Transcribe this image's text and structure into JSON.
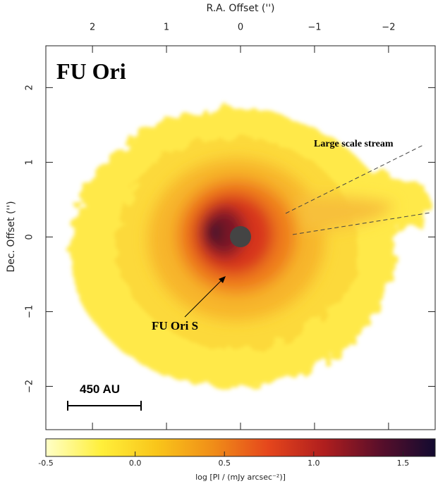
{
  "chart_data": {
    "type": "image",
    "title": "FU Ori",
    "xlabel": "R.A. Offset ('')",
    "ylabel": "Dec. Offset ('')",
    "xlim": [
      2.63,
      -2.63
    ],
    "ylim": [
      -2.58,
      2.56
    ],
    "xticks": [
      2,
      1,
      0,
      {
        "value": -1,
        "label": "−1"
      },
      {
        "value": -2,
        "label": "−2"
      }
    ],
    "yticks": [
      {
        "value": -2,
        "label": "−2"
      },
      {
        "value": -1,
        "label": "−1"
      },
      0,
      1,
      2
    ],
    "colormap": [
      "#ffffc8",
      "#ffef3a",
      "#f9c51a",
      "#f08e18",
      "#e5461c",
      "#b01e1e",
      "#5a0f2a",
      "#120a30"
    ],
    "clim": [
      -0.5,
      1.68
    ],
    "cticks": [
      {
        "value": -0.5,
        "label": "-0.5"
      },
      {
        "value": 0,
        "label": "0.0"
      },
      {
        "value": 0.5,
        "label": "0.5"
      },
      {
        "value": 1,
        "label": "1.0"
      },
      {
        "value": 1.5,
        "label": "1.5"
      }
    ],
    "clabel": "log [PI / (mJy arcsec⁻²)]",
    "annotations": [
      "Large scale stream",
      "FU Ori S"
    ],
    "scalebar": "450 AU"
  }
}
